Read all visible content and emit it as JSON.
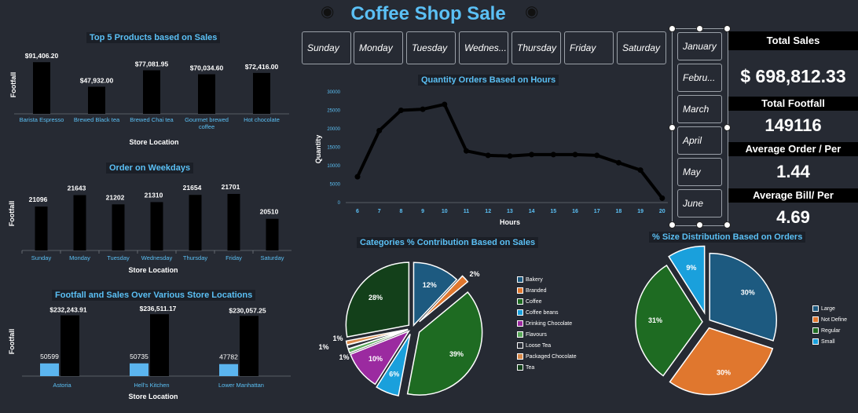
{
  "title": "Coffee Shop Sale",
  "colors": {
    "background": "#262a33",
    "accent": "#5bc0f5",
    "bar_dark": "#000000",
    "bar_light": "#5bb5ef"
  },
  "top_products": {
    "title": "Top 5 Products based on Sales",
    "ylabel": "Footfall",
    "xlabel": "Store Location",
    "chart_data": {
      "type": "bar",
      "categories": [
        "Barista Espresso",
        "Brewed Black tea",
        "Brewed Chai tea",
        "Gourmet brewed coffee",
        "Hot chocolate"
      ],
      "values": [
        91406.2,
        47932.0,
        77081.95,
        70034.6,
        72416.0
      ],
      "labels": [
        "$91,406.20",
        "$47,932.00",
        "$77,081.95",
        "$70,034.60",
        "$72,416.00"
      ]
    }
  },
  "weekdays_chart": {
    "title": "Order on Weekdays",
    "ylabel": "Footfall",
    "xlabel": "Store Location",
    "chart_data": {
      "type": "bar",
      "categories": [
        "Sunday",
        "Monday",
        "Tuesday",
        "Wednesday",
        "Thursday",
        "Friday",
        "Saturday"
      ],
      "values": [
        21096,
        21643,
        21202,
        21310,
        21654,
        21701,
        20510
      ]
    }
  },
  "store_chart": {
    "title": "Footfall and Sales Over Various Store Locations",
    "ylabel": "Footfall",
    "xlabel": "Store Location",
    "chart_data": {
      "type": "bar",
      "categories": [
        "Astoria",
        "Hell's Kitchen",
        "Lower Manhattan"
      ],
      "series": [
        {
          "values": [
            50599,
            50735,
            47782
          ],
          "labels": [
            "50599",
            "50735",
            "47782"
          ]
        },
        {
          "values": [
            232243.91,
            236511.17,
            230057.25
          ],
          "labels": [
            "$232,243.91",
            "$236,511.17",
            "$230,057.25"
          ]
        }
      ]
    }
  },
  "day_slicer": [
    "Sunday",
    "Monday",
    "Tuesday",
    "Wednes...",
    "Thursday",
    "Friday",
    "Saturday"
  ],
  "month_slicer": [
    "January",
    "Febru...",
    "March",
    "April",
    "May",
    "June"
  ],
  "hours_chart": {
    "title": "Quantity Orders Based on Hours",
    "ylabel": "Quantity",
    "xlabel": "Hours",
    "chart_data": {
      "type": "line",
      "x": [
        6,
        7,
        8,
        9,
        10,
        11,
        12,
        13,
        14,
        15,
        16,
        17,
        18,
        19,
        20
      ],
      "y": [
        7000,
        19500,
        25000,
        25300,
        26600,
        14000,
        12800,
        12600,
        13000,
        13000,
        13000,
        12800,
        10800,
        8800,
        1200
      ],
      "yticks": [
        0,
        5000,
        10000,
        15000,
        20000,
        25000,
        30000
      ],
      "ylim": [
        0,
        30000
      ]
    }
  },
  "kpis": {
    "total_sales_label": "Total Sales",
    "total_sales": "$ 698,812.33",
    "total_footfall_label": "Total Footfall",
    "total_footfall": "149116",
    "avg_order_label": "Average Order / Per",
    "avg_order": "1.44",
    "avg_bill_label": "Average Bill/ Per",
    "avg_bill": "4.69"
  },
  "categories_chart": {
    "title": "Categories % Contribution Based on Sales",
    "chart_data": {
      "type": "pie",
      "slices": [
        {
          "name": "Bakery",
          "value": 12,
          "label": "12%",
          "color": "#1d5a80"
        },
        {
          "name": "Branded",
          "value": 2,
          "label": "2%",
          "color": "#e0772e"
        },
        {
          "name": "Coffee",
          "value": 39,
          "label": "39%",
          "color": "#1e6b22"
        },
        {
          "name": "Coffee beans",
          "value": 6,
          "label": "6%",
          "color": "#1aa0dc"
        },
        {
          "name": "Drinking Chocolate",
          "value": 10,
          "label": "10%",
          "color": "#9b2aa0"
        },
        {
          "name": "Flavours",
          "value": 1,
          "label": "1%",
          "color": "#5aa85a"
        },
        {
          "name": "Loose Tea",
          "value": 1,
          "label": "1%",
          "color": "#2b2f38"
        },
        {
          "name": "Packaged Chocolate",
          "value": 1,
          "label": "1%",
          "color": "#d98a4a"
        },
        {
          "name": "Tea",
          "value": 28,
          "label": "28%",
          "color": "#13401a"
        }
      ]
    }
  },
  "size_chart": {
    "title": "% Size Distribution Based on Orders",
    "chart_data": {
      "type": "pie",
      "slices": [
        {
          "name": "Large",
          "value": 30,
          "label": "30%",
          "color": "#1d5a80"
        },
        {
          "name": "Not Define",
          "value": 30,
          "label": "30%",
          "color": "#e0772e"
        },
        {
          "name": "Regular",
          "value": 31,
          "label": "31%",
          "color": "#1e6b22"
        },
        {
          "name": "Small",
          "value": 9,
          "label": "9%",
          "color": "#1aa0dc"
        }
      ]
    }
  }
}
